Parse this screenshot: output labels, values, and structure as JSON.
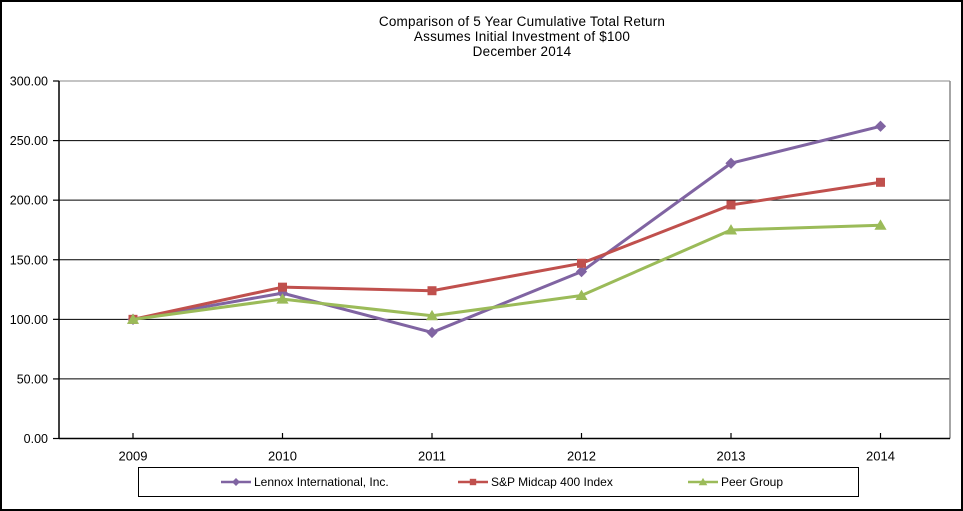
{
  "chart_data": {
    "type": "line",
    "title": "Comparison of 5 Year Cumulative Total Return",
    "subtitle": "Assumes Initial Investment of $100",
    "subtitle2": "December 2014",
    "categories": [
      "2009",
      "2010",
      "2011",
      "2012",
      "2013",
      "2014"
    ],
    "series": [
      {
        "name": "Lennox International, Inc.",
        "color": "#8064A2",
        "marker": "diamond",
        "values": [
          100,
          122,
          89,
          140,
          231,
          262
        ]
      },
      {
        "name": "S&P Midcap 400 Index",
        "color": "#C0504D",
        "marker": "square",
        "values": [
          100,
          127,
          124,
          147,
          196,
          215
        ]
      },
      {
        "name": "Peer Group",
        "color": "#9BBB59",
        "marker": "triangle",
        "values": [
          100,
          117,
          103,
          120,
          175,
          179
        ]
      }
    ],
    "ylim": [
      0,
      300
    ],
    "ytick_step": 50,
    "ytick_labels": [
      "0.00",
      "50.00",
      "100.00",
      "150.00",
      "200.00",
      "250.00",
      "300.00"
    ],
    "grid": true,
    "gridline_color": "#000000",
    "plot_border_color": "#898989",
    "axis_color": "#000000",
    "legend_position": "bottom"
  }
}
